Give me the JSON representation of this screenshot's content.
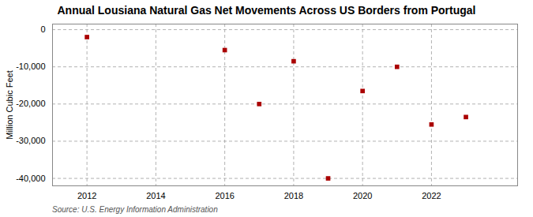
{
  "chart_data": {
    "type": "scatter",
    "title": "Annual Lousiana Natural Gas Net Movements Across US Borders from Portugal",
    "ylabel": "Million Cubic Feet",
    "source": "Source: U.S. Energy Information Administration",
    "x": [
      2012,
      2016,
      2017,
      2018,
      2019,
      2020,
      2021,
      2022,
      2023
    ],
    "values": [
      -2000,
      -5500,
      -20000,
      -8500,
      -40000,
      -16500,
      -10000,
      -25500,
      -23500
    ],
    "color": "#aa0000",
    "marker": "square",
    "xlim": [
      2011.0,
      2024.5
    ],
    "ylim": [
      -42000,
      1500
    ],
    "xticks": [
      2012,
      2014,
      2016,
      2018,
      2020,
      2022
    ],
    "yticks": [
      0,
      {
        "value": -10000,
        "label": "-10,000"
      },
      {
        "value": -20000,
        "label": "-20,000"
      },
      {
        "value": -30000,
        "label": "-30,000"
      },
      {
        "value": -40000,
        "label": "-40,000"
      }
    ],
    "grid": true
  }
}
